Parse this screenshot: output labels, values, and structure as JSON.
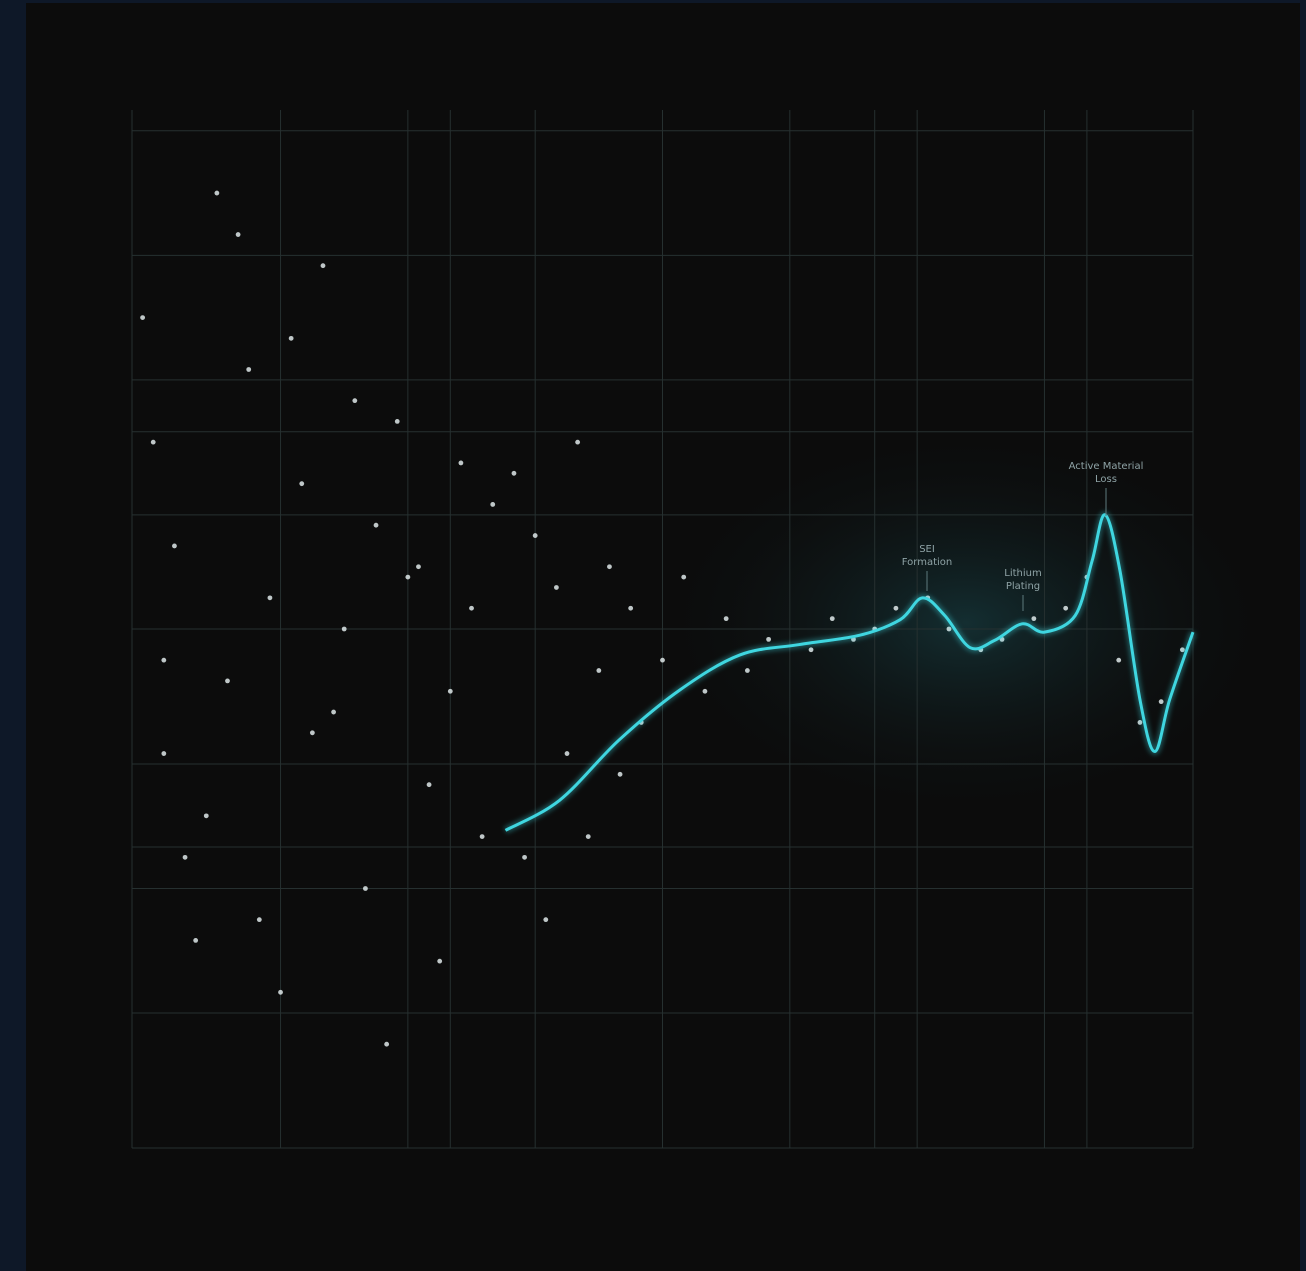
{
  "chart_data": {
    "type": "scatter",
    "xlim": [
      0,
      100
    ],
    "ylim": [
      -50,
      50
    ],
    "xticks": [
      0,
      14,
      26,
      30,
      38,
      50,
      62,
      70,
      74,
      86,
      90,
      100
    ],
    "yticks": [
      48,
      36,
      24,
      19,
      11,
      0,
      -13,
      -21,
      -25,
      -37,
      -50
    ],
    "grid": true,
    "series": [
      {
        "color": "#dfe9ea",
        "x": [
          1,
          3,
          4,
          6,
          2,
          8,
          9,
          11,
          5,
          13,
          14,
          16,
          7,
          18,
          19,
          21,
          12,
          23,
          24,
          26,
          15,
          28,
          29,
          31,
          20,
          33,
          34,
          10,
          22,
          27,
          3,
          17,
          25,
          30,
          32,
          36,
          37,
          38,
          39,
          40,
          41,
          42,
          43,
          44,
          45,
          46,
          47,
          48,
          50,
          52,
          54,
          56,
          58,
          60,
          64,
          66,
          68,
          70,
          72,
          75,
          77,
          80,
          82,
          85,
          88,
          90,
          93,
          95,
          97,
          99
        ],
        "values": [
          30,
          -12,
          8,
          -30,
          18,
          42,
          -5,
          25,
          -22,
          3,
          -35,
          14,
          -18,
          35,
          -8,
          22,
          -28,
          10,
          -40,
          5,
          28,
          -15,
          -32,
          16,
          0,
          -20,
          12,
          38,
          -25,
          6,
          -3,
          -10,
          20,
          -6,
          2,
          15,
          -22,
          9,
          -28,
          4,
          -12,
          18,
          -20,
          -4,
          6,
          -14,
          2,
          -9,
          -3,
          5,
          -6,
          1,
          -4,
          -1,
          -2,
          1,
          -1,
          0,
          2,
          3,
          0,
          -2,
          -1,
          1,
          2,
          5,
          -3,
          -9,
          -7,
          -2
        ]
      },
      {
        "type": "line",
        "color": "#3fd6e0",
        "x": [
          35.2,
          40.3,
          45.9,
          51.6,
          57.3,
          62.9,
          68.6,
          72.4,
          74.5,
          76.6,
          79,
          81.3,
          83.9,
          86,
          88.9,
          90.5,
          91.7,
          93.1,
          95,
          96.4,
          97.8,
          100
        ],
        "values": [
          -19.4,
          -16.5,
          -10.7,
          -5.9,
          -2.5,
          -1.5,
          -0.6,
          0.9,
          3,
          1.3,
          -1.8,
          -1.1,
          0.5,
          -0.3,
          1.3,
          6.6,
          11,
          5.7,
          -6.8,
          -11.8,
          -6.8,
          -0.3
        ]
      }
    ],
    "annotations": [
      "SEI Formation",
      "Lithium Plating",
      "Active Material Loss"
    ]
  }
}
